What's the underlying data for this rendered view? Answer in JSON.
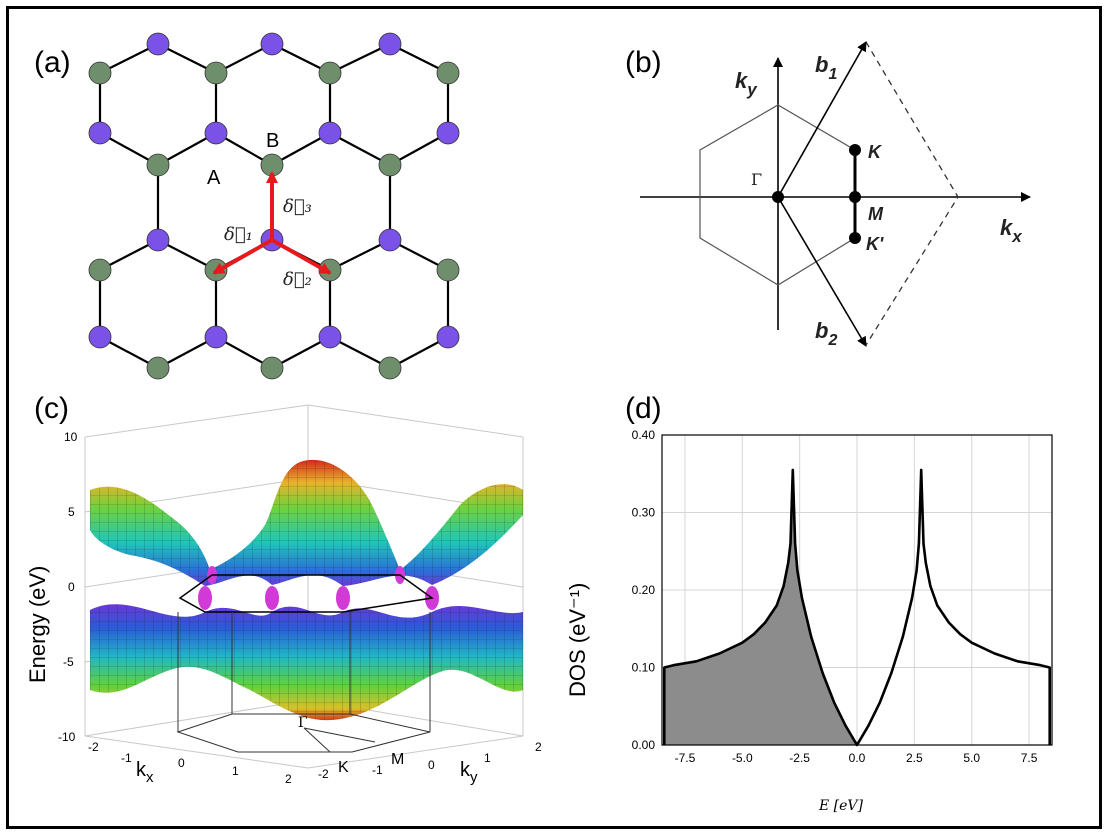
{
  "panels": {
    "a": {
      "label": "(a)",
      "site_A": "A",
      "site_B": "B",
      "delta1": "δ⃗₁",
      "delta2": "δ⃗₂",
      "delta3": "δ⃗₃",
      "colors": {
        "A_sites": "#6f8f6c",
        "B_sites": "#7b52e8",
        "bonds": "#000000",
        "vectors": "#e8191c"
      }
    },
    "b": {
      "label": "(b)",
      "ky": "k",
      "ky_sub": "y",
      "kx": "k",
      "kx_sub": "x",
      "b1": "b",
      "b1_sub": "1",
      "b2": "b",
      "b2_sub": "2",
      "K": "K",
      "M": "M",
      "Kp": "K'",
      "Gamma": "Γ"
    },
    "c": {
      "label": "(c)",
      "zlabel": "Energy (eV)",
      "zticks": [
        "10",
        "5",
        "0",
        "-5",
        "-10"
      ],
      "kx_label": "k",
      "kx_sub": "x",
      "ky_label": "k",
      "ky_sub": "y",
      "kx_ticks": [
        "-2",
        "-1",
        "0",
        "1",
        "2"
      ],
      "ky_ticks": [
        "-2",
        "-1",
        "0",
        "1",
        "2"
      ],
      "gamma": "Γ",
      "K": "K",
      "M": "M"
    },
    "d": {
      "label": "(d)"
    }
  },
  "chart_data": {
    "type": "area",
    "title": "",
    "xlabel": "E [eV]",
    "ylabel": "DOS (eV⁻¹)",
    "xlim": [
      -8.5,
      8.5
    ],
    "ylim": [
      0,
      0.4
    ],
    "xticks": [
      "-7.5",
      "-5.0",
      "-2.5",
      "0.0",
      "2.5",
      "5.0",
      "7.5"
    ],
    "yticks": [
      "0.00",
      "0.10",
      "0.20",
      "0.30",
      "0.40"
    ],
    "grid": true,
    "filled_region": [
      -8.4,
      0.0
    ],
    "fill_color": "#8c8c8c",
    "series": [
      {
        "x": [
          -8.4,
          -8.4,
          -8.0,
          -7.0,
          -6.0,
          -5.0,
          -4.5,
          -4.0,
          -3.5,
          -3.2,
          -3.0,
          -2.9,
          -2.8,
          -2.7,
          -2.6,
          -2.4,
          -2.0,
          -1.5,
          -1.0,
          -0.5,
          0.0,
          0.5,
          1.0,
          1.5,
          2.0,
          2.4,
          2.6,
          2.7,
          2.8,
          2.9,
          3.0,
          3.2,
          3.5,
          4.0,
          4.5,
          5.0,
          6.0,
          7.0,
          8.0,
          8.4,
          8.4
        ],
        "y": [
          0.0,
          0.1,
          0.103,
          0.108,
          0.118,
          0.132,
          0.143,
          0.158,
          0.18,
          0.205,
          0.235,
          0.26,
          0.355,
          0.26,
          0.225,
          0.19,
          0.14,
          0.093,
          0.055,
          0.025,
          0.0,
          0.025,
          0.055,
          0.093,
          0.14,
          0.19,
          0.225,
          0.26,
          0.355,
          0.26,
          0.235,
          0.205,
          0.18,
          0.158,
          0.143,
          0.132,
          0.118,
          0.108,
          0.103,
          0.1,
          0.0
        ]
      }
    ]
  }
}
